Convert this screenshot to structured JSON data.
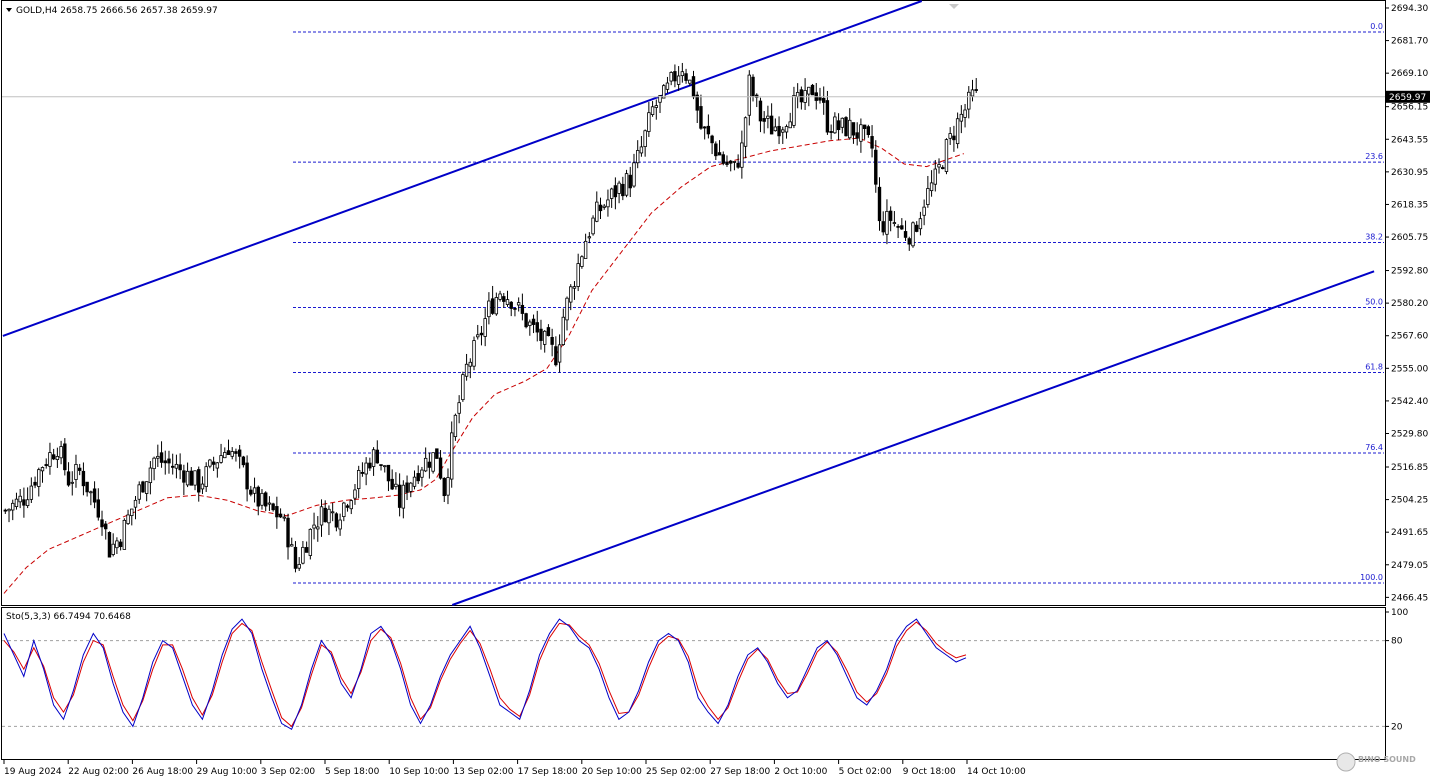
{
  "chart_data": {
    "type": "candlestick",
    "symbol": "GOLD,H4",
    "ohlc": {
      "open": "2658.75",
      "high": "2666.56",
      "low": "2657.38",
      "close": "2659.97"
    },
    "current_price": "2659.97",
    "price_axis": {
      "ylim": [
        2463.5,
        2697.0
      ],
      "ticks": [
        "2694.30",
        "2681.70",
        "2669.10",
        "2656.15",
        "2643.55",
        "2630.95",
        "2618.35",
        "2605.75",
        "2592.80",
        "2580.20",
        "2567.60",
        "2555.00",
        "2542.40",
        "2529.80",
        "2516.85",
        "2504.25",
        "2491.65",
        "2479.05",
        "2466.45"
      ]
    },
    "time_axis": {
      "labels": [
        "19 Aug 2024",
        "22 Aug 02:00",
        "26 Aug 18:00",
        "29 Aug 10:00",
        "3 Sep 02:00",
        "5 Sep 18:00",
        "10 Sep 10:00",
        "13 Sep 02:00",
        "17 Sep 18:00",
        "20 Sep 10:00",
        "25 Sep 02:00",
        "27 Sep 18:00",
        "2 Oct 10:00",
        "5 Oct 02:00",
        "9 Oct 18:00",
        "14 Oct 10:00"
      ]
    },
    "fibonacci": {
      "high": 2685.0,
      "low": 2472.0,
      "levels": [
        {
          "label": "0.0",
          "ratio": 0
        },
        {
          "label": "23.6",
          "ratio": 0.236
        },
        {
          "label": "38.2",
          "ratio": 0.382
        },
        {
          "label": "50.0",
          "ratio": 0.5
        },
        {
          "label": "61.8",
          "ratio": 0.618
        },
        {
          "label": "76.4",
          "ratio": 0.764
        },
        {
          "label": "100.0",
          "ratio": 1
        }
      ]
    },
    "close_path": [
      [
        0,
        2500
      ],
      [
        5,
        2505
      ],
      [
        10,
        2518
      ],
      [
        14,
        2525
      ],
      [
        17,
        2512
      ],
      [
        20,
        2515
      ],
      [
        26,
        2498
      ],
      [
        28,
        2485
      ],
      [
        31,
        2490
      ],
      [
        36,
        2508
      ],
      [
        40,
        2520
      ],
      [
        44,
        2518
      ],
      [
        48,
        2515
      ],
      [
        52,
        2510
      ],
      [
        57,
        2520
      ],
      [
        60,
        2525
      ],
      [
        64,
        2515
      ],
      [
        67,
        2505
      ],
      [
        71,
        2500
      ],
      [
        74,
        2498
      ],
      [
        76,
        2490
      ],
      [
        78,
        2478
      ],
      [
        80,
        2485
      ],
      [
        83,
        2495
      ],
      [
        86,
        2500
      ],
      [
        89,
        2498
      ],
      [
        92,
        2505
      ],
      [
        95,
        2512
      ],
      [
        98,
        2520
      ],
      [
        100,
        2522
      ],
      [
        103,
        2512
      ],
      [
        106,
        2503
      ],
      [
        108,
        2510
      ],
      [
        112,
        2518
      ],
      [
        116,
        2522
      ],
      [
        118,
        2508
      ],
      [
        121,
        2535
      ],
      [
        124,
        2555
      ],
      [
        127,
        2565
      ],
      [
        130,
        2578
      ],
      [
        133,
        2585
      ],
      [
        136,
        2582
      ],
      [
        139,
        2575
      ],
      [
        142,
        2570
      ],
      [
        145,
        2565
      ],
      [
        148,
        2560
      ],
      [
        150,
        2575
      ],
      [
        153,
        2590
      ],
      [
        156,
        2605
      ],
      [
        159,
        2615
      ],
      [
        162,
        2620
      ],
      [
        165,
        2625
      ],
      [
        168,
        2628
      ],
      [
        171,
        2640
      ],
      [
        174,
        2655
      ],
      [
        177,
        2660
      ],
      [
        180,
        2668
      ],
      [
        182,
        2672
      ],
      [
        185,
        2662
      ],
      [
        187,
        2648
      ],
      [
        190,
        2642
      ],
      [
        193,
        2635
      ],
      [
        196,
        2632
      ],
      [
        198,
        2640
      ],
      [
        200,
        2665
      ],
      [
        203,
        2652
      ],
      [
        206,
        2648
      ],
      [
        209,
        2650
      ],
      [
        212,
        2657
      ],
      [
        215,
        2658
      ],
      [
        217,
        2663
      ],
      [
        219,
        2660
      ],
      [
        221,
        2650
      ],
      [
        224,
        2648
      ],
      [
        227,
        2648
      ],
      [
        230,
        2645
      ],
      [
        233,
        2640
      ],
      [
        235,
        2610
      ],
      [
        238,
        2613
      ],
      [
        241,
        2608
      ],
      [
        244,
        2607
      ],
      [
        247,
        2620
      ],
      [
        250,
        2628
      ],
      [
        253,
        2640
      ],
      [
        256,
        2650
      ],
      [
        258,
        2655
      ],
      [
        260,
        2660
      ]
    ],
    "ma": [
      [
        0,
        2468
      ],
      [
        6,
        2478
      ],
      [
        12,
        2485
      ],
      [
        20,
        2490
      ],
      [
        28,
        2495
      ],
      [
        36,
        2500
      ],
      [
        44,
        2505
      ],
      [
        52,
        2506
      ],
      [
        60,
        2504
      ],
      [
        68,
        2500
      ],
      [
        76,
        2498
      ],
      [
        84,
        2502
      ],
      [
        92,
        2504
      ],
      [
        100,
        2505
      ],
      [
        106,
        2506
      ],
      [
        112,
        2508
      ],
      [
        116,
        2512
      ],
      [
        120,
        2522
      ],
      [
        126,
        2536
      ],
      [
        132,
        2545
      ],
      [
        140,
        2550
      ],
      [
        146,
        2555
      ],
      [
        152,
        2568
      ],
      [
        158,
        2585
      ],
      [
        166,
        2600
      ],
      [
        174,
        2615
      ],
      [
        182,
        2625
      ],
      [
        190,
        2633
      ],
      [
        198,
        2636
      ],
      [
        206,
        2639
      ],
      [
        214,
        2641
      ],
      [
        222,
        2643
      ],
      [
        230,
        2644
      ],
      [
        236,
        2640
      ],
      [
        242,
        2634
      ],
      [
        248,
        2633
      ],
      [
        254,
        2636
      ],
      [
        258,
        2638
      ]
    ],
    "channel_upper": {
      "from": [
        -0.3,
        2567.5
      ],
      "to": [
        246.7,
        2697
      ]
    },
    "channel_lower": {
      "from": [
        120.5,
        2463.5
      ],
      "to": [
        368.3,
        2592.5
      ]
    },
    "stochastic": {
      "label": "Sto(5,3,3)",
      "main": "66.7494",
      "signal": "70.6468",
      "ylim": [
        0,
        100
      ],
      "levels": [
        20,
        80
      ],
      "tick_labels": [
        "100",
        "80",
        "20"
      ],
      "main_series": [
        85,
        70,
        55,
        80,
        60,
        35,
        25,
        45,
        70,
        85,
        75,
        50,
        30,
        20,
        40,
        65,
        80,
        75,
        55,
        35,
        25,
        45,
        70,
        88,
        95,
        85,
        60,
        40,
        22,
        18,
        35,
        60,
        80,
        70,
        50,
        40,
        60,
        85,
        90,
        80,
        60,
        35,
        22,
        35,
        55,
        70,
        80,
        90,
        75,
        55,
        35,
        30,
        25,
        45,
        70,
        85,
        95,
        90,
        80,
        75,
        60,
        40,
        25,
        30,
        45,
        65,
        80,
        85,
        80,
        65,
        40,
        30,
        22,
        35,
        55,
        70,
        75,
        65,
        50,
        40,
        45,
        60,
        75,
        80,
        70,
        55,
        40,
        35,
        45,
        60,
        80,
        90,
        95,
        85,
        75,
        70,
        65,
        68
      ],
      "signal_series": [
        80,
        72,
        60,
        75,
        62,
        40,
        30,
        42,
        65,
        80,
        77,
        55,
        35,
        24,
        38,
        60,
        77,
        77,
        60,
        40,
        28,
        42,
        65,
        85,
        92,
        87,
        65,
        45,
        26,
        20,
        33,
        56,
        77,
        72,
        54,
        43,
        58,
        80,
        88,
        82,
        64,
        40,
        25,
        33,
        52,
        67,
        78,
        87,
        78,
        60,
        40,
        32,
        27,
        42,
        66,
        82,
        92,
        91,
        83,
        77,
        64,
        45,
        29,
        30,
        42,
        61,
        77,
        83,
        81,
        69,
        46,
        34,
        25,
        33,
        51,
        67,
        74,
        67,
        53,
        43,
        44,
        57,
        72,
        79,
        72,
        59,
        44,
        37,
        43,
        57,
        76,
        87,
        93,
        87,
        78,
        72,
        68,
        70
      ]
    },
    "colors": {
      "bull": "#000000",
      "bear": "#000000",
      "channel": "#0000c8",
      "ma": "#c80000",
      "stoch_main": "#0000c8",
      "stoch_signal": "#dc0000",
      "fib": "#1b1bd0",
      "price_tag": "#000000"
    }
  },
  "header": {
    "title": "GOLD,H4  2658.75 2666.56 2657.38 2659.97"
  },
  "watermark": "BINO SOUND"
}
